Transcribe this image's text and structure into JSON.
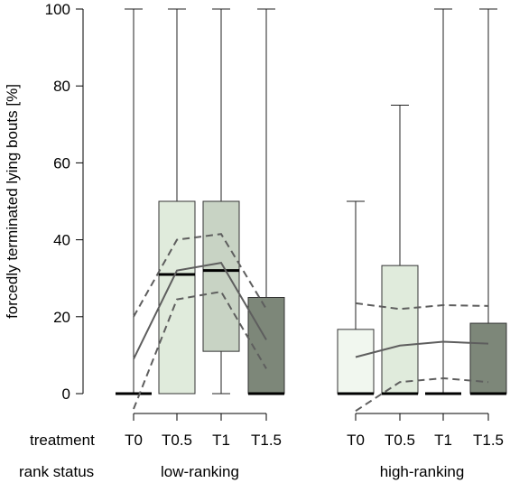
{
  "chart_data": {
    "type": "box",
    "ylabel": "forcedly terminated lying bouts [%]",
    "ylim": [
      0,
      100
    ],
    "yticks": [
      0,
      20,
      40,
      60,
      80,
      100
    ],
    "row_labels": {
      "treatment": "treatment",
      "rank_status": "rank status"
    },
    "groups": [
      {
        "name": "low-ranking",
        "boxes": [
          {
            "treatment": "T0",
            "color": "#f1f7ef",
            "q1": 0,
            "median": 0,
            "q3": 0,
            "whisker_low": 0,
            "whisker_high": 100
          },
          {
            "treatment": "T0.5",
            "color": "#e0ebdc",
            "q1": 0,
            "median": 31,
            "q3": 50,
            "whisker_low": 0,
            "whisker_high": 100
          },
          {
            "treatment": "T1",
            "color": "#c8d3c4",
            "q1": 11,
            "median": 32,
            "q3": 50,
            "whisker_low": 0,
            "whisker_high": 100
          },
          {
            "treatment": "T1.5",
            "color": "#7d8779",
            "q1": 0,
            "median": 0,
            "q3": 25,
            "whisker_low": 0,
            "whisker_high": 100
          }
        ],
        "fit": [
          9,
          32,
          34,
          14
        ],
        "ci_upper": [
          20,
          40,
          41.5,
          22
        ],
        "ci_lower": [
          -4,
          24.5,
          26.5,
          6.5
        ]
      },
      {
        "name": "high-ranking",
        "boxes": [
          {
            "treatment": "T0",
            "color": "#f1f7ef",
            "q1": 0,
            "median": 0,
            "q3": 16.7,
            "whisker_low": 0,
            "whisker_high": 50
          },
          {
            "treatment": "T0.5",
            "color": "#e0ebdc",
            "q1": 0,
            "median": 0,
            "q3": 33.3,
            "whisker_low": 0,
            "whisker_high": 75
          },
          {
            "treatment": "T1",
            "color": "#c8d3c4",
            "q1": 0,
            "median": 0,
            "q3": 0,
            "whisker_low": 0,
            "whisker_high": 100
          },
          {
            "treatment": "T1.5",
            "color": "#7d8779",
            "q1": 0,
            "median": 0,
            "q3": 18.3,
            "whisker_low": 0,
            "whisker_high": 100
          }
        ],
        "fit": [
          9.5,
          12.5,
          13.5,
          13
        ],
        "ci_upper": [
          23.5,
          22,
          23,
          22.8
        ],
        "ci_lower": [
          -4.5,
          3,
          4,
          3
        ]
      }
    ]
  }
}
